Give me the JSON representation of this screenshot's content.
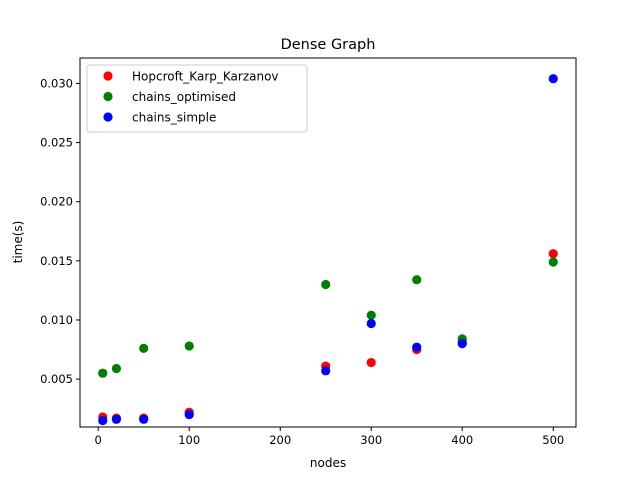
{
  "chart_data": {
    "type": "scatter",
    "title": "Dense Graph",
    "xlabel": "nodes",
    "ylabel": "time(s)",
    "xlim": [
      -20,
      525
    ],
    "ylim": [
      0.00095,
      0.03215
    ],
    "xticks": [
      0,
      100,
      200,
      300,
      400,
      500
    ],
    "yticks": [
      0.005,
      0.01,
      0.015,
      0.02,
      0.025,
      0.03
    ],
    "xtick_labels": [
      "0",
      "100",
      "200",
      "300",
      "400",
      "500"
    ],
    "ytick_labels": [
      "0.005",
      "0.010",
      "0.015",
      "0.020",
      "0.025",
      "0.030"
    ],
    "grid": false,
    "legend_position": "top-left",
    "series": [
      {
        "name": "Hopcroft_Karp_Karzanov",
        "color": "#ff0000",
        "x": [
          5,
          20,
          50,
          100,
          250,
          300,
          350,
          400,
          500
        ],
        "y": [
          0.0018,
          0.0017,
          0.0017,
          0.0022,
          0.0061,
          0.0064,
          0.0075,
          0.0082,
          0.0156
        ]
      },
      {
        "name": "chains_optimised",
        "color": "#008000",
        "x": [
          5,
          20,
          50,
          100,
          250,
          300,
          350,
          400,
          500
        ],
        "y": [
          0.0055,
          0.0059,
          0.0076,
          0.0078,
          0.013,
          0.0104,
          0.0134,
          0.0084,
          0.0149
        ]
      },
      {
        "name": "chains_simple",
        "color": "#0000ff",
        "x": [
          5,
          20,
          50,
          100,
          250,
          300,
          350,
          400,
          500
        ],
        "y": [
          0.0015,
          0.0016,
          0.0016,
          0.002,
          0.0057,
          0.0097,
          0.0077,
          0.008,
          0.0304
        ]
      }
    ]
  }
}
